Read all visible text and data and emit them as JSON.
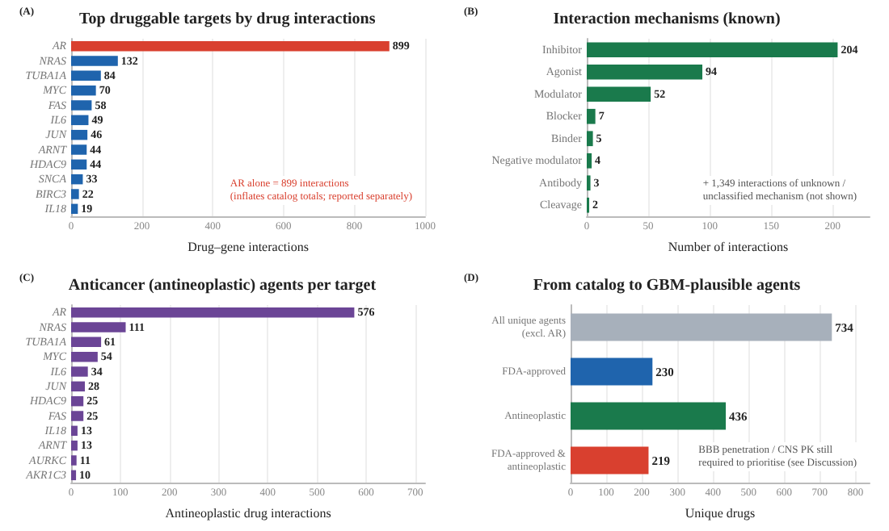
{
  "chart_data": [
    {
      "type": "bar",
      "orientation": "horizontal",
      "title": "Top druggable targets by drug interactions",
      "xlabel": "Drug–gene interactions",
      "categories": [
        "AR",
        "NRAS",
        "TUBA1A",
        "MYC",
        "FAS",
        "IL6",
        "JUN",
        "ARNT",
        "HDAC9",
        "SNCA",
        "BIRC3",
        "IL18"
      ],
      "values": [
        899,
        132,
        84,
        70,
        58,
        49,
        46,
        44,
        44,
        33,
        22,
        19
      ],
      "colors": [
        "#d9402f",
        "#1f64ad",
        "#1f64ad",
        "#1f64ad",
        "#1f64ad",
        "#1f64ad",
        "#1f64ad",
        "#1f64ad",
        "#1f64ad",
        "#1f64ad",
        "#1f64ad",
        "#1f64ad"
      ],
      "xlim": [
        0,
        1000
      ],
      "xticks": [
        0,
        200,
        400,
        600,
        800,
        1000
      ],
      "grid": "x",
      "data_labels": true,
      "annotations": [
        "(A)",
        "AR alone = 899 interactions\n(inflates catalog totals; reported separately)"
      ]
    },
    {
      "type": "bar",
      "orientation": "horizontal",
      "title": "Interaction mechanisms (known)",
      "xlabel": "Number of interactions",
      "categories": [
        "Inhibitor",
        "Agonist",
        "Modulator",
        "Blocker",
        "Binder",
        "Negative modulator",
        "Antibody",
        "Cleavage"
      ],
      "values": [
        204,
        94,
        52,
        7,
        5,
        4,
        3,
        2
      ],
      "color": "#1a7a4c",
      "xlim": [
        0,
        230
      ],
      "xticks": [
        0,
        50,
        100,
        150,
        200
      ],
      "grid": "x",
      "data_labels": true,
      "annotations": [
        "(B)",
        "+ 1,349 interactions of unknown /\nunclassified mechanism (not shown)"
      ]
    },
    {
      "type": "bar",
      "orientation": "horizontal",
      "title": "Anticancer (antineoplastic) agents per target",
      "xlabel": "Antineoplastic drug interactions",
      "categories": [
        "AR",
        "NRAS",
        "TUBA1A",
        "MYC",
        "IL6",
        "JUN",
        "HDAC9",
        "FAS",
        "IL18",
        "ARNT",
        "AURKC",
        "AKR1C3"
      ],
      "values": [
        576,
        111,
        61,
        54,
        34,
        28,
        25,
        25,
        13,
        13,
        11,
        10
      ],
      "color": "#6b4596",
      "xlim": [
        0,
        720
      ],
      "xticks": [
        0,
        100,
        200,
        300,
        400,
        500,
        600,
        700
      ],
      "grid": "x",
      "data_labels": true,
      "annotations": [
        "(C)"
      ]
    },
    {
      "type": "bar",
      "orientation": "horizontal",
      "title": "From catalog to GBM-plausible agents",
      "xlabel": "Unique drugs",
      "categories": [
        "All unique agents\n(excl. AR)",
        "FDA-approved",
        "Antineoplastic",
        "FDA-approved &\nantineoplastic"
      ],
      "values": [
        734,
        230,
        436,
        219
      ],
      "colors": [
        "#a7b0bb",
        "#1f64ad",
        "#1a7a4c",
        "#d9402f"
      ],
      "xlim": [
        0,
        840
      ],
      "xticks": [
        0,
        100,
        200,
        300,
        400,
        500,
        600,
        700,
        800
      ],
      "grid": "x",
      "data_labels": true,
      "annotations": [
        "(D)",
        "BBB penetration / CNS PK still\nrequired to prioritise (see Discussion)"
      ]
    }
  ]
}
